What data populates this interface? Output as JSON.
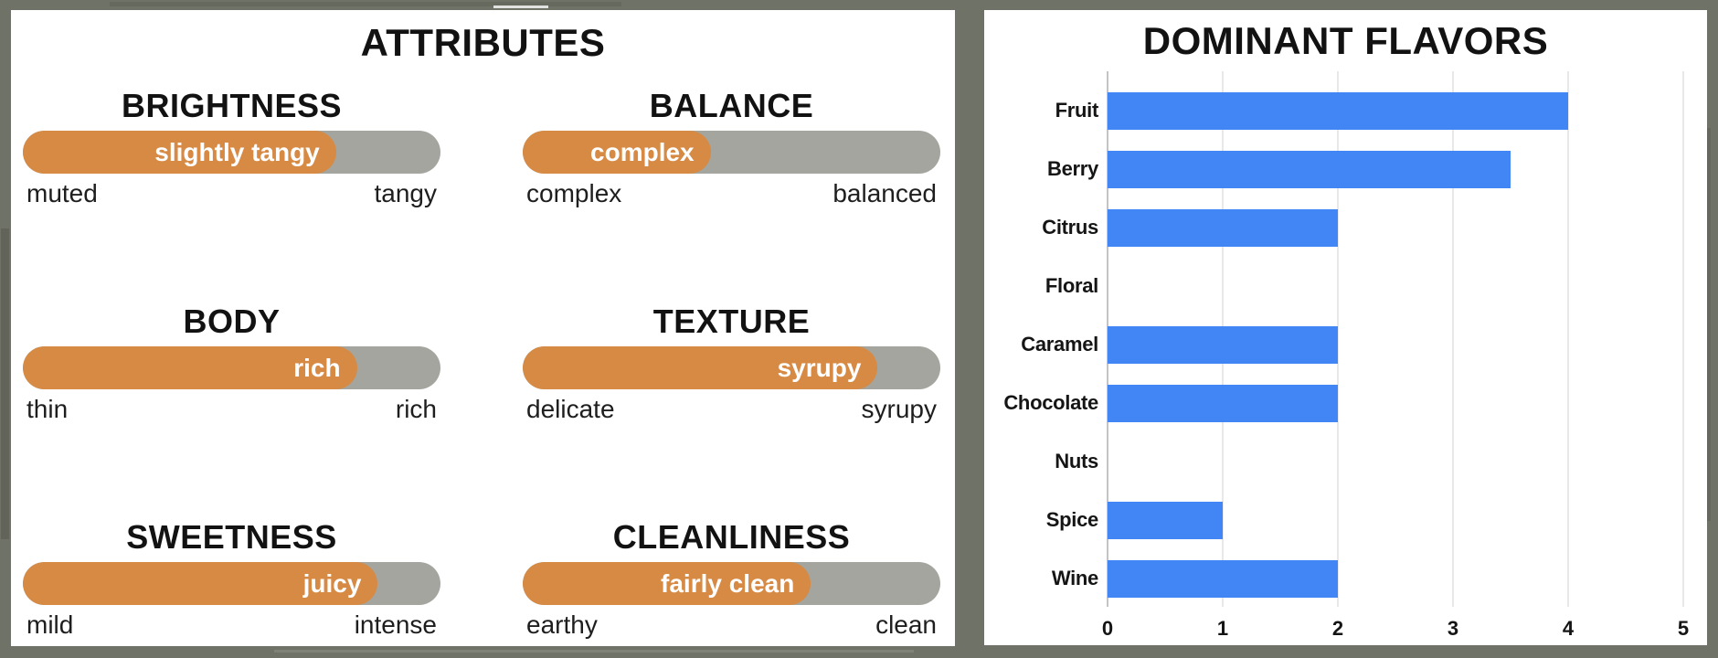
{
  "colors": {
    "background_frame": "#6f7267",
    "panel": "#ffffff",
    "slider_track": "#a4a59e",
    "slider_fill": "#d68a44",
    "bar_blue": "#4285f4",
    "text": "#121212",
    "gridline": "#e8e8e8"
  },
  "attributes_panel": {
    "title": "ATTRIBUTES",
    "attributes": [
      {
        "name": "BRIGHTNESS",
        "value_label": "slightly tangy",
        "fill_percent": 75,
        "scale_min": "muted",
        "scale_max": "tangy"
      },
      {
        "name": "BALANCE",
        "value_label": "complex",
        "fill_percent": 45,
        "scale_min": "complex",
        "scale_max": "balanced"
      },
      {
        "name": "BODY",
        "value_label": "rich",
        "fill_percent": 80,
        "scale_min": "thin",
        "scale_max": "rich"
      },
      {
        "name": "TEXTURE",
        "value_label": "syrupy",
        "fill_percent": 85,
        "scale_min": "delicate",
        "scale_max": "syrupy"
      },
      {
        "name": "SWEETNESS",
        "value_label": "juicy",
        "fill_percent": 85,
        "scale_min": "mild",
        "scale_max": "intense"
      },
      {
        "name": "CLEANLINESS",
        "value_label": "fairly clean",
        "fill_percent": 69,
        "scale_min": "earthy",
        "scale_max": "clean"
      }
    ]
  },
  "chart_data": {
    "type": "bar",
    "orientation": "horizontal",
    "title": "DOMINANT FLAVORS",
    "categories": [
      "Fruit",
      "Berry",
      "Citrus",
      "Floral",
      "Caramel",
      "Chocolate",
      "Nuts",
      "Spice",
      "Wine"
    ],
    "values": [
      4,
      3.5,
      2,
      0,
      2,
      2,
      0,
      1,
      2
    ],
    "xlabel": "",
    "ylabel": "",
    "xlim": [
      0,
      5
    ],
    "x_ticks": [
      0,
      1,
      2,
      3,
      4,
      5
    ],
    "grid": true,
    "legend": false,
    "bar_color": "#4285f4"
  }
}
